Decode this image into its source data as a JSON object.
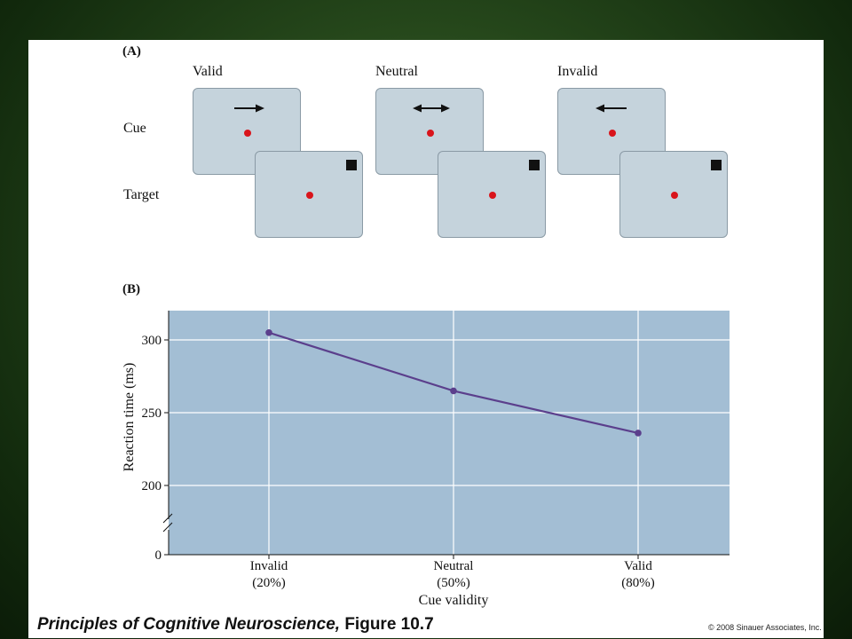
{
  "panel_a": {
    "label": "(A)",
    "columns": [
      "Valid",
      "Neutral",
      "Invalid"
    ],
    "rows": [
      "Cue",
      "Target"
    ],
    "cue_arrows": [
      "right-arrow-icon",
      "double-arrow-icon",
      "left-arrow-icon"
    ],
    "colors": {
      "screen": "#c5d3dc",
      "fixation": "#d9141b",
      "target": "#111111"
    }
  },
  "panel_b": {
    "label": "(B)"
  },
  "chart_data": {
    "type": "line",
    "categories": [
      "Invalid\n(20%)",
      "Neutral\n(50%)",
      "Valid\n(80%)"
    ],
    "series": [
      {
        "values": [
          305,
          265,
          236
        ]
      }
    ],
    "xlabel": "Cue validity",
    "ylabel": "Reaction time (ms)",
    "yticks": [
      0,
      200,
      250,
      300
    ],
    "ylim": [
      175,
      320
    ],
    "axis_break": true,
    "grid": true,
    "colors": {
      "plot_bg": "#a3bed4",
      "line": "#5b3f8c",
      "grid": "#ffffff"
    }
  },
  "footer": {
    "title": "Principles of Cognitive Neuroscience,",
    "figure": "Figure 10.7",
    "copyright": "© 2008 Sinauer Associates, Inc."
  }
}
